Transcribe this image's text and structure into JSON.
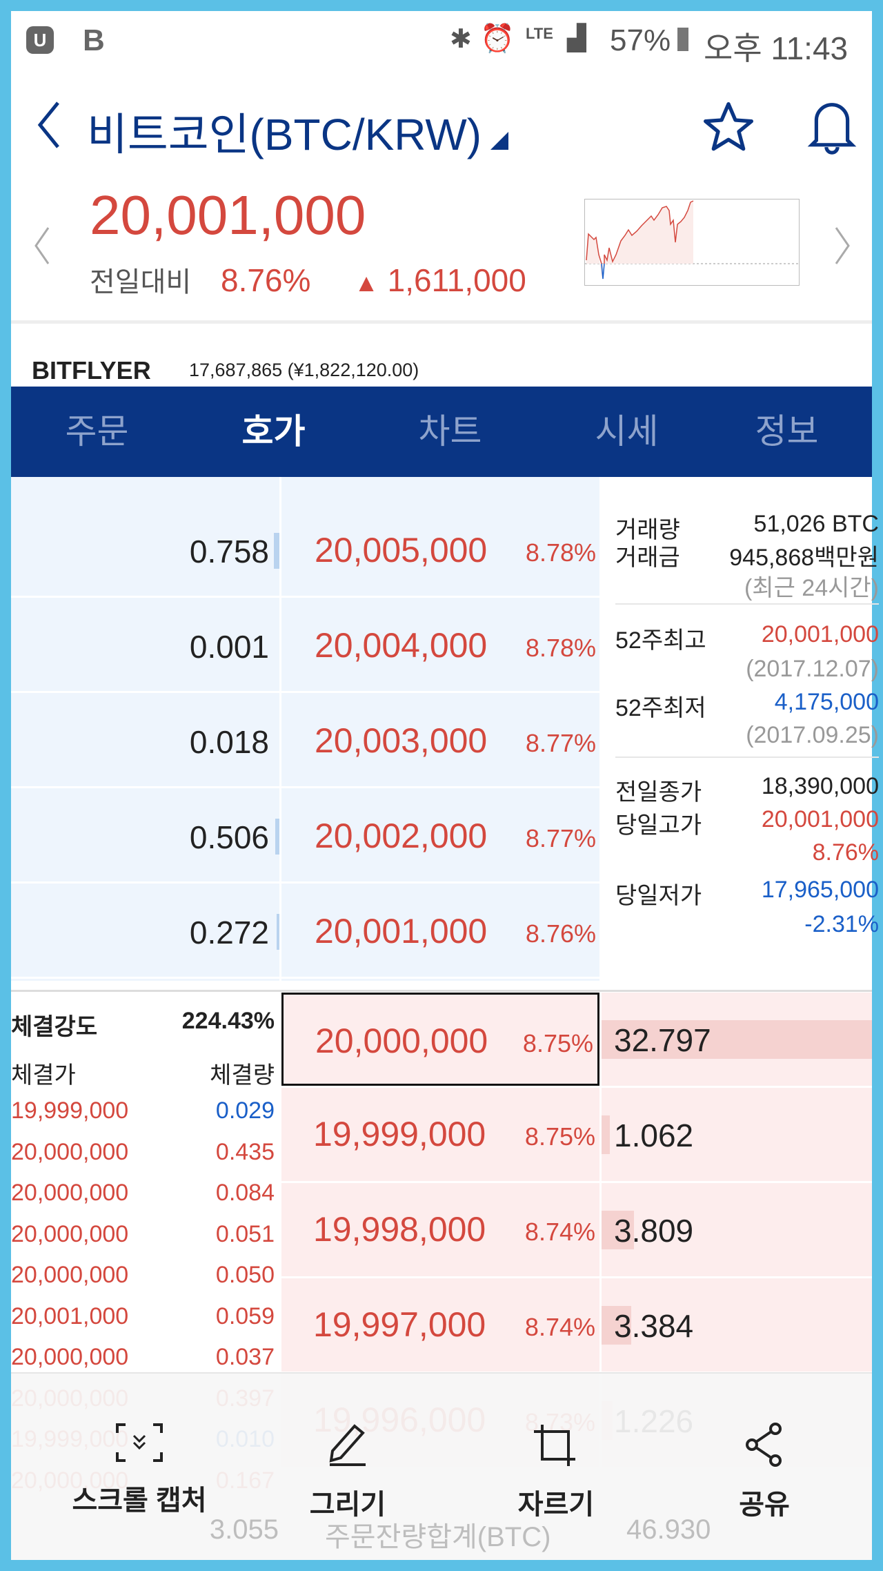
{
  "status": {
    "carrier": "B",
    "battery": "57%",
    "time": "오후 11:43",
    "network": "LTE"
  },
  "header": {
    "title": "비트코인(BTC/KRW)",
    "price": "20,001,000",
    "compare_label": "전일대비",
    "change_pct": "8.76%",
    "change_abs": "1,611,000"
  },
  "exchange": {
    "name": "BITFLYER",
    "price": "17,687,865 (¥1,822,120.00)"
  },
  "tabs": [
    {
      "label": "주문"
    },
    {
      "label": "호가"
    },
    {
      "label": "차트"
    },
    {
      "label": "시세"
    },
    {
      "label": "정보"
    }
  ],
  "asks": [
    {
      "qty": "0.758",
      "price": "20,005,000",
      "pct": "8.78%",
      "bar": 0.02
    },
    {
      "qty": "0.001",
      "price": "20,004,000",
      "pct": "8.78%",
      "bar": 0
    },
    {
      "qty": "0.018",
      "price": "20,003,000",
      "pct": "8.77%",
      "bar": 0
    },
    {
      "qty": "0.506",
      "price": "20,002,000",
      "pct": "8.77%",
      "bar": 0.015
    },
    {
      "qty": "0.272",
      "price": "20,001,000",
      "pct": "8.76%",
      "bar": 0.01
    }
  ],
  "bids": [
    {
      "price": "20,000,000",
      "pct": "8.75%",
      "qty": "32.797",
      "bar": 1.0
    },
    {
      "price": "19,999,000",
      "pct": "8.75%",
      "qty": "1.062",
      "bar": 0.03
    },
    {
      "price": "19,998,000",
      "pct": "8.74%",
      "qty": "3.809",
      "bar": 0.12
    },
    {
      "price": "19,997,000",
      "pct": "8.74%",
      "qty": "3.384",
      "bar": 0.11
    },
    {
      "price": "19,996,000",
      "pct": "8.73%",
      "qty": "1.226",
      "bar": 0.04
    }
  ],
  "info": {
    "volume_label": "거래량",
    "volume": "51,026 BTC",
    "amount_label": "거래금",
    "amount": "945,868백만원",
    "period": "(최근 24시간)",
    "high52_label": "52주최고",
    "high52": "20,001,000",
    "high52_date": "(2017.12.07)",
    "low52_label": "52주최저",
    "low52": "4,175,000",
    "low52_date": "(2017.09.25)",
    "prev_close_label": "전일종가",
    "prev_close": "18,390,000",
    "day_high_label": "당일고가",
    "day_high": "20,001,000",
    "day_high_pct": "8.76%",
    "day_low_label": "당일저가",
    "day_low": "17,965,000",
    "day_low_pct": "-2.31%"
  },
  "trades": {
    "strength_label": "체결강도",
    "strength": "224.43%",
    "price_header": "체결가",
    "qty_header": "체결량",
    "rows": [
      {
        "price": "19,999,000",
        "qty": "0.029",
        "side": "sell"
      },
      {
        "price": "20,000,000",
        "qty": "0.435",
        "side": "buy"
      },
      {
        "price": "20,000,000",
        "qty": "0.084",
        "side": "buy"
      },
      {
        "price": "20,000,000",
        "qty": "0.051",
        "side": "buy"
      },
      {
        "price": "20,000,000",
        "qty": "0.050",
        "side": "buy"
      },
      {
        "price": "20,001,000",
        "qty": "0.059",
        "side": "buy"
      },
      {
        "price": "20,000,000",
        "qty": "0.037",
        "side": "buy"
      },
      {
        "price": "20,000,000",
        "qty": "0.397",
        "side": "buy"
      },
      {
        "price": "19,999,000",
        "qty": "0.010",
        "side": "sell"
      },
      {
        "price": "20,000,000",
        "qty": "0.167",
        "side": "buy"
      }
    ]
  },
  "summary": {
    "ask_total": "3.055",
    "label": "주문잔량합계(BTC)",
    "bid_total": "46.930"
  },
  "overlay": {
    "scroll_capture": "스크롤 캡처",
    "draw": "그리기",
    "crop": "자르기",
    "share": "공유"
  },
  "colors": {
    "up": "#d4483e",
    "down": "#1a5fc8",
    "tabbar": "#0a3584",
    "border": "#5bc0e6"
  }
}
